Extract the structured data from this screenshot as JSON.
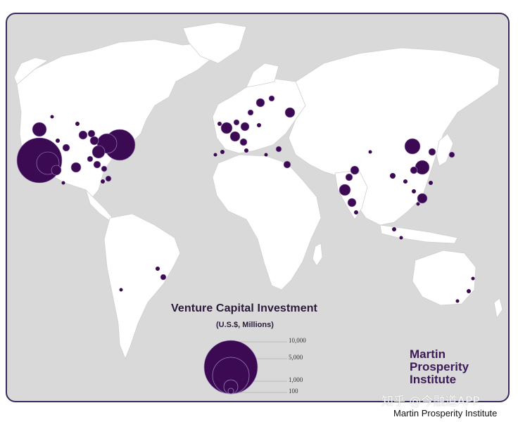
{
  "legend": {
    "title": "Venture Capital Investment",
    "subtitle": "(U.S.$, Millions)",
    "scale_values": [
      "10,000",
      "5,000",
      "1,000",
      "100"
    ],
    "colors": {
      "bubble": "#3b0a53",
      "outline": "#a58cc4"
    }
  },
  "logo": {
    "line1": "Martin",
    "line2": "Prosperity",
    "line3": "Institute"
  },
  "watermark": "知乎 @今融道APP",
  "caption": "Martin Prosperity Institute",
  "colors": {
    "ocean": "#d9d9d9",
    "land": "#ffffff",
    "frame": "#3a2a5e"
  }
}
